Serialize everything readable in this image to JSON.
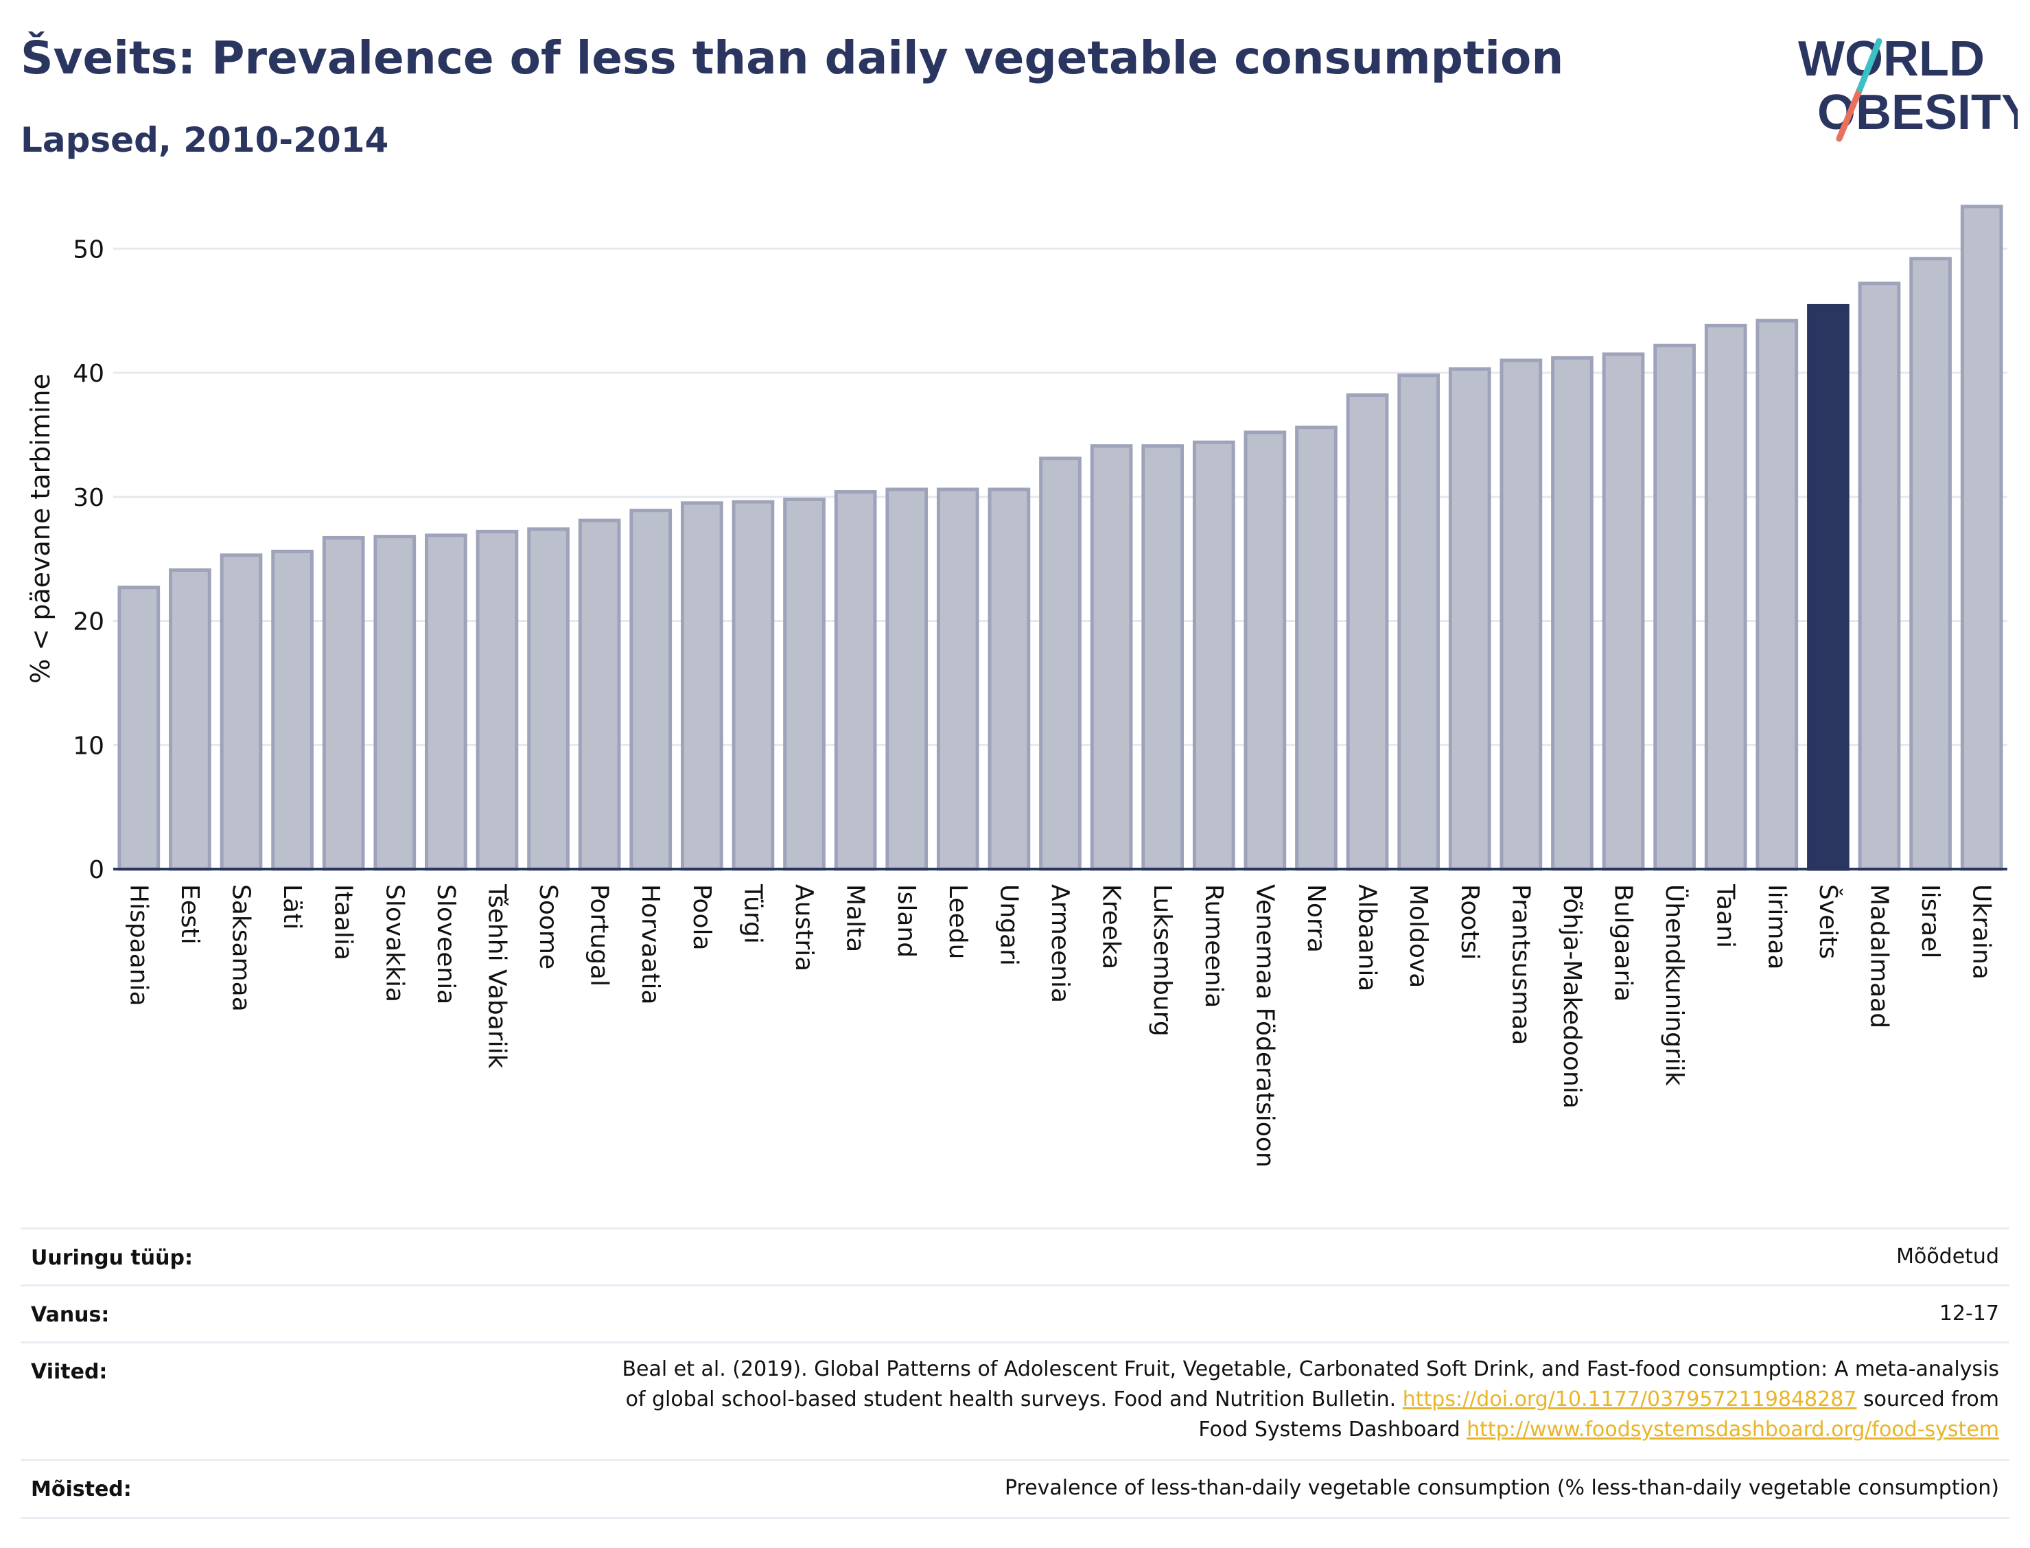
{
  "header": {
    "title": "Šveits: Prevalence of less than daily vegetable consumption",
    "subtitle": "Lapsed, 2010-2014"
  },
  "logo": {
    "line1": "WORLD",
    "line2": "OBESITY"
  },
  "colors": {
    "bar": "#bcc0cd",
    "bar_stroke": "#9ea3ba",
    "highlight": "#2a3560",
    "grid": "#e5e8ee",
    "link": "#e8b528"
  },
  "chart_data": {
    "type": "bar",
    "ylabel": "% < päevane tarbimine",
    "ylim": [
      0,
      54
    ],
    "yticks": [
      0,
      10,
      20,
      30,
      40,
      50
    ],
    "grid": true,
    "highlight": "Šveits",
    "categories": [
      "Hispaania",
      "Eesti",
      "Saksamaa",
      "Läti",
      "Itaalia",
      "Slovakkia",
      "Sloveenia",
      "Tšehhi Vabariik",
      "Soome",
      "Portugal",
      "Horvaatia",
      "Poola",
      "Türgi",
      "Austria",
      "Malta",
      "Island",
      "Leedu",
      "Ungari",
      "Armeenia",
      "Kreeka",
      "Luksemburg",
      "Rumeenia",
      "Venemaa Föderatsioon",
      "Norra",
      "Albaania",
      "Moldova",
      "Rootsi",
      "Prantsusmaa",
      "Põhja-Makedoonia",
      "Bulgaaria",
      "Ühendkuningriik",
      "Taani",
      "Iirimaa",
      "Šveits",
      "Madalmaad",
      "Iisrael",
      "Ukraina"
    ],
    "values": [
      22.7,
      24.1,
      25.3,
      25.6,
      26.7,
      26.8,
      26.9,
      27.2,
      27.4,
      28.1,
      28.9,
      29.5,
      29.6,
      29.8,
      30.4,
      30.6,
      30.6,
      30.6,
      33.1,
      34.1,
      34.1,
      34.4,
      35.2,
      35.6,
      38.2,
      39.8,
      40.3,
      41.0,
      41.2,
      41.5,
      42.2,
      43.8,
      44.2,
      45.4,
      47.2,
      49.2,
      53.4
    ]
  },
  "meta": {
    "survey_label": "Uuringu tüüp:",
    "survey_value": "Mõõdetud",
    "age_label": "Vanus:",
    "age_value": "12-17",
    "refs_label": "Viited:",
    "refs_line1": "Beal et al. (2019). Global Patterns of Adolescent Fruit, Vegetable, Carbonated Soft Drink, and Fast-food consumption: A meta-analysis",
    "refs_line2_text": "of global school-based student health surveys. Food and Nutrition Bulletin. ",
    "refs_line2_link": "https://doi.org/10.1177/0379572119848287",
    "refs_line2_tail": " sourced from",
    "refs_line3_text": "Food Systems Dashboard ",
    "refs_line3_link": "http://www.foodsystemsdashboard.org/food-system",
    "def_label": "Mõisted:",
    "def_value": "Prevalence of less-than-daily vegetable consumption (% less-than-daily vegetable consumption)"
  }
}
